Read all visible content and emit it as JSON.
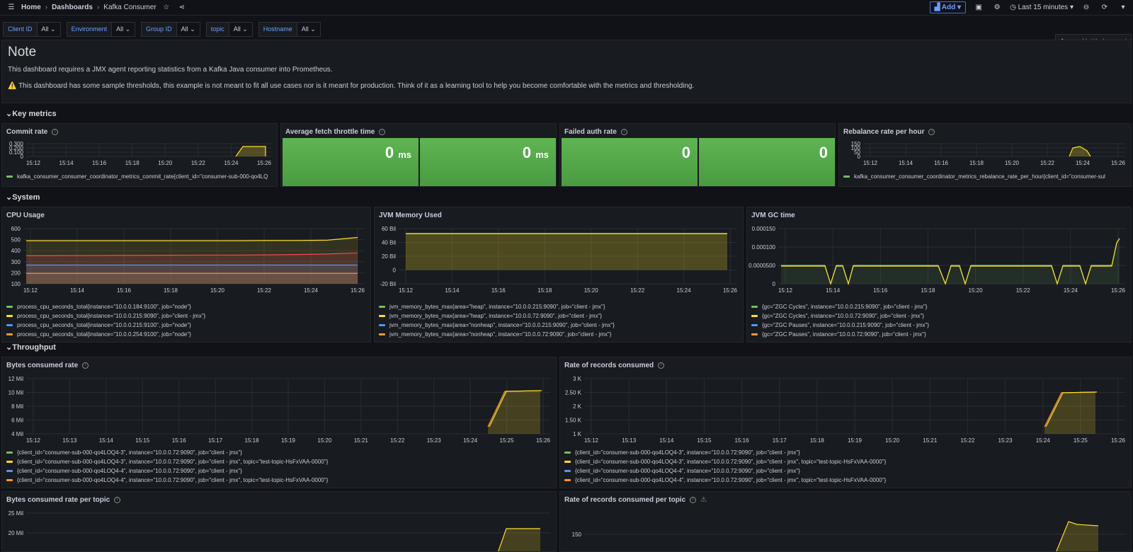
{
  "topbar": {
    "home": "Home",
    "dashboards": "Dashboards",
    "title": "Kafka Consumer",
    "add": "Add",
    "timerange": "Last 15 minutes"
  },
  "variables": [
    {
      "label": "Client ID",
      "value": "All"
    },
    {
      "label": "Environment",
      "value": "All"
    },
    {
      "label": "Group ID",
      "value": "All"
    },
    {
      "label": "topic",
      "value": "All"
    },
    {
      "label": "Hostname",
      "value": "All"
    }
  ],
  "untitled": "Untitled",
  "note": {
    "title": "Note",
    "line1": "This dashboard requires a JMX agent reporting statistics from a Kafka Java consumer into Prometheus.",
    "line2": "This dashboard has some sample thresholds, this example is not meant to fit all use cases nor is it meant for production. Think of it as a learning tool to help you become comfortable with the metrics and thresholding."
  },
  "rows": {
    "key": "Key metrics",
    "system": "System",
    "throughput": "Throughput"
  },
  "panels": {
    "commit": {
      "title": "Commit rate",
      "legend": "kafka_consumer_consumer_coordinator_metrics_commit_rate{client_id=\"consumer-sub-000-qo4LQ"
    },
    "fetch": {
      "title": "Average fetch throttle time",
      "v1": "0",
      "v2": "0",
      "unit": "ms"
    },
    "auth": {
      "title": "Failed auth rate",
      "v1": "0",
      "v2": "0"
    },
    "rebalance": {
      "title": "Rebalance rate per hour",
      "legend": "kafka_consumer_consumer_coordinator_metrics_rebalance_rate_per_hour{client_id=\"consumer-sul"
    },
    "cpu": {
      "title": "CPU Usage",
      "legend": [
        "process_cpu_seconds_total{instance=\"10.0.0.184:9100\", job=\"node\"}",
        "process_cpu_seconds_total{instance=\"10.0.0.215:9090\", job=\"client - jmx\"}",
        "process_cpu_seconds_total{instance=\"10.0.0.215:9100\", job=\"node\"}",
        "process_cpu_seconds_total{instance=\"10.0.0.254:9100\", job=\"node\"}"
      ]
    },
    "jvm": {
      "title": "JVM Memory Used",
      "legend": [
        "jvm_memory_bytes_max{area=\"heap\", instance=\"10.0.0.215:9090\", job=\"client - jmx\"}",
        "jvm_memory_bytes_max{area=\"heap\", instance=\"10.0.0.72:9090\", job=\"client - jmx\"}",
        "jvm_memory_bytes_max{area=\"nonheap\", instance=\"10.0.0.215:9090\", job=\"client - jmx\"}",
        "jvm_memory_bytes_max{area=\"nonheap\", instance=\"10.0.0.72:9090\", job=\"client - jmx\"}"
      ]
    },
    "gc": {
      "title": "JVM GC time",
      "legend": [
        "{gc=\"ZGC Cycles\", instance=\"10.0.0.215:9090\", job=\"client - jmx\"}",
        "{gc=\"ZGC Cycles\", instance=\"10.0.0.72:9090\", job=\"client - jmx\"}",
        "{gc=\"ZGC Pauses\", instance=\"10.0.0.215:9090\", job=\"client - jmx\"}",
        "{gc=\"ZGC Pauses\", instance=\"10.0.0.72:9090\", job=\"client - jmx\"}"
      ]
    },
    "bytes": {
      "title": "Bytes consumed rate",
      "legend": [
        "{client_id=\"consumer-sub-000-qo4LOQ4-3\", instance=\"10.0.0.72:9090\", job=\"client - jmx\"}",
        "{client_id=\"consumer-sub-000-qo4LOQ4-3\", instance=\"10.0.0.72:9090\", job=\"client - jmx\", topic=\"test-topic-HsFxVAA-0000\"}",
        "{client_id=\"consumer-sub-000-qo4LOQ4-4\", instance=\"10.0.0.72:9090\", job=\"client - jmx\"}",
        "{client_id=\"consumer-sub-000-qo4LOQ4-4\", instance=\"10.0.0.72:9090\", job=\"client - jmx\", topic=\"test-topic-HsFxVAA-0000\"}"
      ]
    },
    "records": {
      "title": "Rate of records consumed",
      "legend": [
        "{client_id=\"consumer-sub-000-qo4LOQ4-3\", instance=\"10.0.0.72:9090\", job=\"client - jmx\"}",
        "{client_id=\"consumer-sub-000-qo4LOQ4-3\", instance=\"10.0.0.72:9090\", job=\"client - jmx\", topic=\"test-topic-HsFxVAA-0000\"}",
        "{client_id=\"consumer-sub-000-qo4LOQ4-4\", instance=\"10.0.0.72:9090\", job=\"client - jmx\"}",
        "{client_id=\"consumer-sub-000-qo4LOQ4-4\", instance=\"10.0.0.72:9090\", job=\"client - jmx\", topic=\"test-topic-HsFxVAA-0000\"}"
      ]
    },
    "bytes_topic": {
      "title": "Bytes consumed rate per topic"
    },
    "records_topic": {
      "title": "Rate of records consumed per topic"
    }
  },
  "colors": {
    "green": "#73bf69",
    "yellow": "#fade2a",
    "blue": "#5794f2",
    "orange": "#ff9830",
    "red": "#f2495c"
  },
  "chart_data": [
    {
      "type": "line",
      "name": "commit",
      "yticks": [
        "0.300",
        "0.200",
        "0.100",
        "0"
      ],
      "xticks": [
        "15:12",
        "15:14",
        "15:16",
        "15:18",
        "15:20",
        "15:22",
        "15:24",
        "15:26"
      ]
    },
    {
      "type": "line",
      "name": "rebalance",
      "yticks": [
        "150",
        "100",
        "50",
        "0"
      ],
      "xticks": [
        "15:12",
        "15:14",
        "15:16",
        "15:18",
        "15:20",
        "15:22",
        "15:24",
        "15:26"
      ]
    },
    {
      "type": "area",
      "name": "cpu",
      "ylim": [
        100,
        600
      ],
      "yticks": [
        "600",
        "500",
        "400",
        "300",
        "200",
        "100"
      ],
      "xticks": [
        "15:12",
        "15:14",
        "15:16",
        "15:18",
        "15:20",
        "15:22",
        "15:24",
        "15:26"
      ],
      "series": [
        {
          "values": [
            490,
            490,
            490,
            490,
            490,
            490,
            490,
            490,
            492,
            492,
            495,
            520
          ]
        },
        {
          "values": [
            355,
            355,
            356,
            357,
            358,
            359,
            360,
            360,
            362,
            365,
            370,
            380
          ]
        },
        {
          "values": [
            270,
            270,
            270,
            270,
            270,
            270,
            270,
            270,
            270,
            270,
            270,
            270
          ]
        },
        {
          "values": [
            195,
            195,
            195,
            195,
            195,
            195,
            195,
            195,
            195,
            195,
            195,
            195
          ]
        }
      ]
    },
    {
      "type": "area",
      "name": "jvm",
      "ylim": [
        -20,
        60
      ],
      "yticks": [
        "60 Bil",
        "40 Bil",
        "20 Bil",
        "0",
        "-20 Bil"
      ],
      "xticks": [
        "15:12",
        "15:14",
        "15:16",
        "15:18",
        "15:20",
        "15:22",
        "15:24",
        "15:26"
      ],
      "series": [
        {
          "values": [
            53,
            53,
            53,
            53,
            53,
            53,
            53,
            53,
            53,
            53,
            53,
            53
          ]
        },
        {
          "values": [
            52.5,
            52.5,
            52.5,
            52.5,
            52.5,
            52.5,
            52.5,
            52.5,
            52.5,
            52.5,
            52.5,
            52.5
          ]
        }
      ]
    },
    {
      "type": "line",
      "name": "gc",
      "yticks": [
        "0.000150",
        "0.000100",
        "0.0000500",
        "0"
      ],
      "xticks": [
        "15:12",
        "15:14",
        "15:16",
        "15:18",
        "15:20",
        "15:22",
        "15:24",
        "15:26"
      ]
    },
    {
      "type": "area",
      "name": "bytes",
      "yticks": [
        "12 Mil",
        "10 Mil",
        "8 Mil",
        "6 Mil",
        "4 Mil"
      ],
      "xticks": [
        "15:12",
        "15:13",
        "15:14",
        "15:15",
        "15:16",
        "15:17",
        "15:18",
        "15:19",
        "15:20",
        "15:21",
        "15:22",
        "15:23",
        "15:24",
        "15:25",
        "15:26"
      ]
    },
    {
      "type": "area",
      "name": "records",
      "yticks": [
        "3 K",
        "2.50 K",
        "2 K",
        "1.50 K",
        "1 K"
      ],
      "xticks": [
        "15:12",
        "15:13",
        "15:14",
        "15:15",
        "15:16",
        "15:17",
        "15:18",
        "15:19",
        "15:20",
        "15:21",
        "15:22",
        "15:23",
        "15:24",
        "15:25",
        "15:26"
      ]
    },
    {
      "type": "area",
      "name": "bytes_topic",
      "yticks": [
        "25 Mil",
        "20 Mil"
      ]
    },
    {
      "type": "area",
      "name": "records_topic",
      "yticks": [
        "150"
      ]
    }
  ]
}
